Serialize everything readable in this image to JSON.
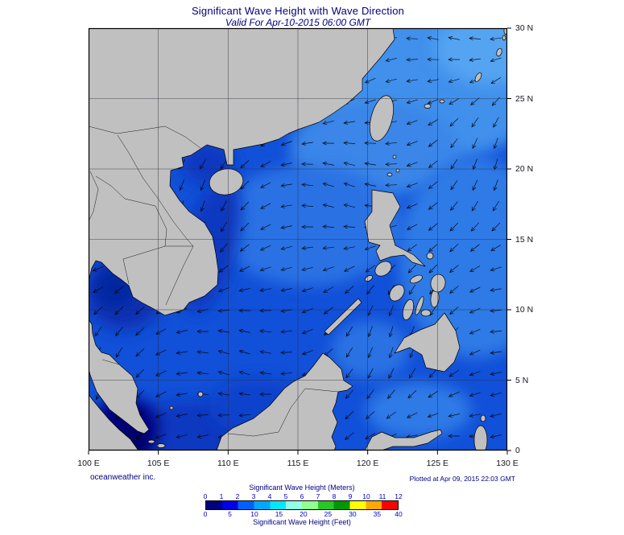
{
  "header": {
    "title": "Significant Wave Height with Wave Direction",
    "subtitle": "Valid For Apr-10-2015 06:00 GMT"
  },
  "axes": {
    "lat_labels": [
      "30 N",
      "25 N",
      "20 N",
      "15 N",
      "10 N",
      "5 N",
      "0"
    ],
    "lon_labels": [
      "100 E",
      "105 E",
      "110 E",
      "115 E",
      "120 E",
      "125 E",
      "130 E"
    ]
  },
  "footer": {
    "credit": "oceanweather inc.",
    "plotted_at": "Plotted at Apr 09, 2015 22:03 GMT"
  },
  "legend": {
    "meters_label": "Significant Wave Height (Meters)",
    "feet_label": "Significant Wave Height (Feet)",
    "meters_ticks": [
      0,
      1,
      2,
      3,
      4,
      5,
      6,
      7,
      8,
      9,
      10,
      11,
      12
    ],
    "feet_ticks": [
      0,
      5,
      10,
      15,
      20,
      25,
      30,
      35,
      40
    ],
    "palette": [
      "#000080",
      "#0000e8",
      "#0060ff",
      "#00a8ff",
      "#00e8ff",
      "#90ffe8",
      "#90ff90",
      "#28c828",
      "#009800",
      "#ffff00",
      "#ffa800",
      "#ff0000"
    ]
  },
  "map": {
    "sea_base_color": "#1150d8",
    "land_color": "#c0c0c0",
    "low_wave_color": "#000080"
  },
  "chart_data": {
    "type": "heatmap",
    "title": "Significant Wave Height with Wave Direction",
    "valid_for": "Apr-10-2015 06:00 GMT",
    "region": {
      "lon_min_e": 100,
      "lon_max_e": 130,
      "lat_min_n": 0,
      "lat_max_n": 30,
      "grid_interval_deg": 5
    },
    "colorbar": {
      "units": [
        "Meters",
        "Feet"
      ],
      "meters_range": [
        0,
        12
      ],
      "feet_range": [
        0,
        40
      ]
    },
    "overlay": "wave direction arrows over sea, predominantly toward the west-southwest"
  }
}
